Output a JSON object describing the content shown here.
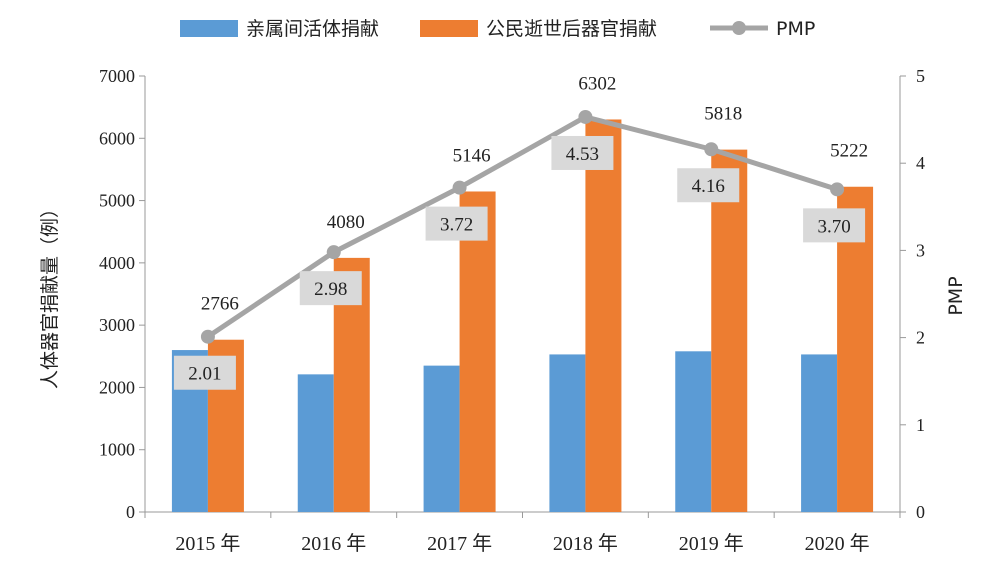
{
  "chart_data": {
    "type": "bar",
    "categories": [
      "2015 年",
      "2016 年",
      "2017 年",
      "2018 年",
      "2019 年",
      "2020 年"
    ],
    "series": [
      {
        "name": "亲属间活体捐献",
        "type": "bar",
        "axis": "left",
        "color": "#5b9bd5",
        "values": [
          2600,
          2210,
          2350,
          2530,
          2580,
          2530
        ],
        "show_labels": false
      },
      {
        "name": "公民逝世后器官捐献",
        "type": "bar",
        "axis": "left",
        "color": "#ed7d31",
        "values": [
          2766,
          4080,
          5146,
          6302,
          5818,
          5222
        ],
        "show_labels": true
      },
      {
        "name": "PMP",
        "type": "line",
        "axis": "right",
        "color": "#a5a5a5",
        "values": [
          2.01,
          2.98,
          3.72,
          4.53,
          4.16,
          3.7
        ],
        "labels": [
          "2.01",
          "2.98",
          "3.72",
          "4.53",
          "4.16",
          "3.70"
        ],
        "show_labels": true
      }
    ],
    "ylabel": "人体器官捐献量（例）",
    "y2label": "PMP",
    "ylim": [
      0,
      7000
    ],
    "y2lim": [
      0,
      5
    ],
    "yticks": [
      0,
      1000,
      2000,
      3000,
      4000,
      5000,
      6000,
      7000
    ],
    "y2ticks": [
      0,
      1,
      2,
      3,
      4,
      5
    ],
    "legend_position": "top",
    "grid": false
  }
}
